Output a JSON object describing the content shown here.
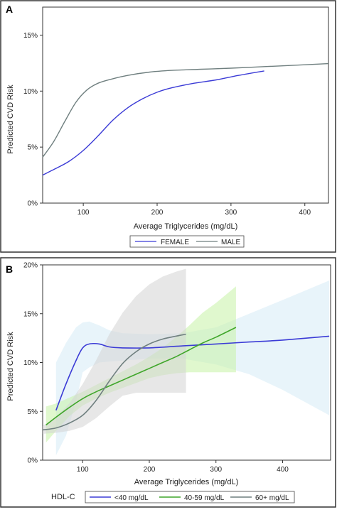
{
  "colors": {
    "blue": "#3b3bd6",
    "gray": "#6f7f7f",
    "green": "#3fa62a",
    "blue_band": "#d6ebf6",
    "green_band": "#c6f2a6",
    "gray_band": "#d4d4d4"
  },
  "chart_data": [
    {
      "panel": "A",
      "type": "line",
      "xlabel": "Average Triglycerides (mg/dL)",
      "ylabel": "Predicted CVD Risk",
      "xlim": [
        45,
        432
      ],
      "ylim": [
        0,
        17.5
      ],
      "xticks": [
        100,
        200,
        300,
        400
      ],
      "yticks": [
        0,
        5,
        10,
        15
      ],
      "ytick_labels": [
        "0%",
        "5%",
        "10%",
        "15%"
      ],
      "legend_position": "bottom",
      "series": [
        {
          "name": "FEMALE",
          "color": "blue",
          "x": [
            45,
            60,
            80,
            100,
            120,
            140,
            160,
            180,
            200,
            220,
            250,
            280,
            310,
            345
          ],
          "y": [
            2.5,
            3.0,
            3.7,
            4.7,
            6.0,
            7.4,
            8.5,
            9.3,
            9.9,
            10.3,
            10.7,
            11.0,
            11.4,
            11.8
          ]
        },
        {
          "name": "MALE",
          "color": "gray",
          "x": [
            45,
            60,
            75,
            90,
            105,
            120,
            140,
            160,
            190,
            220,
            260,
            300,
            350,
            400,
            432
          ],
          "y": [
            4.1,
            5.5,
            7.3,
            9.0,
            10.1,
            10.7,
            11.1,
            11.4,
            11.7,
            11.85,
            11.95,
            12.05,
            12.2,
            12.35,
            12.45
          ]
        }
      ]
    },
    {
      "panel": "B",
      "type": "line",
      "xlabel": "Average Triglycerides (mg/dL)",
      "ylabel": "Predicted CVD Risk",
      "xlim": [
        40,
        472
      ],
      "ylim": [
        0,
        20
      ],
      "xticks": [
        100,
        200,
        300,
        400
      ],
      "yticks": [
        0,
        5,
        10,
        15,
        20
      ],
      "ytick_labels": [
        "0%",
        "5%",
        "10%",
        "15%",
        "20%"
      ],
      "legend_title": "HDL-C",
      "legend_position": "bottom",
      "series": [
        {
          "name": "<40 mg/dL",
          "color": "blue",
          "band_color": "blue_band",
          "x": [
            60,
            75,
            90,
            100,
            110,
            125,
            140,
            160,
            200,
            250,
            300,
            350,
            400,
            470
          ],
          "y": [
            5.1,
            7.8,
            10.2,
            11.5,
            11.9,
            11.9,
            11.6,
            11.5,
            11.5,
            11.7,
            11.9,
            12.1,
            12.3,
            12.7
          ],
          "lower": [
            0.5,
            2.5,
            6.0,
            9.0,
            9.5,
            10.0,
            10.1,
            10.2,
            10.4,
            10.4,
            9.8,
            8.8,
            7.2,
            4.6
          ],
          "upper": [
            10.0,
            12.0,
            13.6,
            14.1,
            14.2,
            13.8,
            13.3,
            13.0,
            12.9,
            13.0,
            13.6,
            15.0,
            16.4,
            18.4
          ]
        },
        {
          "name": "40-59 mg/dL",
          "color": "green",
          "band_color": "green_band",
          "x": [
            45,
            60,
            80,
            100,
            120,
            140,
            160,
            180,
            200,
            220,
            240,
            260,
            280,
            300,
            330
          ],
          "y": [
            3.6,
            4.4,
            5.4,
            6.3,
            7.0,
            7.6,
            8.2,
            8.8,
            9.4,
            10.0,
            10.6,
            11.3,
            12.0,
            12.6,
            13.6
          ],
          "lower": [
            1.8,
            3.0,
            4.5,
            5.6,
            6.3,
            6.9,
            7.4,
            7.9,
            8.4,
            8.7,
            8.9,
            9.0,
            9.0,
            9.0,
            9.0
          ],
          "upper": [
            5.5,
            5.8,
            6.4,
            7.0,
            7.7,
            8.4,
            9.1,
            9.8,
            10.6,
            11.5,
            12.6,
            13.8,
            15.1,
            16.1,
            17.8
          ]
        },
        {
          "name": "60+ mg/dL",
          "color": "gray",
          "band_color": "gray_band",
          "x": [
            40,
            60,
            80,
            100,
            120,
            140,
            160,
            180,
            200,
            220,
            240,
            255
          ],
          "y": [
            3.1,
            3.3,
            3.8,
            4.6,
            6.1,
            8.1,
            9.9,
            11.1,
            11.9,
            12.4,
            12.7,
            12.9
          ],
          "lower": [
            2.7,
            2.8,
            3.0,
            3.4,
            4.3,
            5.5,
            6.6,
            6.9,
            6.9,
            6.9,
            6.9,
            6.9
          ],
          "upper": [
            3.5,
            4.4,
            5.8,
            7.8,
            10.2,
            12.9,
            15.1,
            16.8,
            18.0,
            18.8,
            19.3,
            19.6
          ]
        }
      ]
    }
  ]
}
